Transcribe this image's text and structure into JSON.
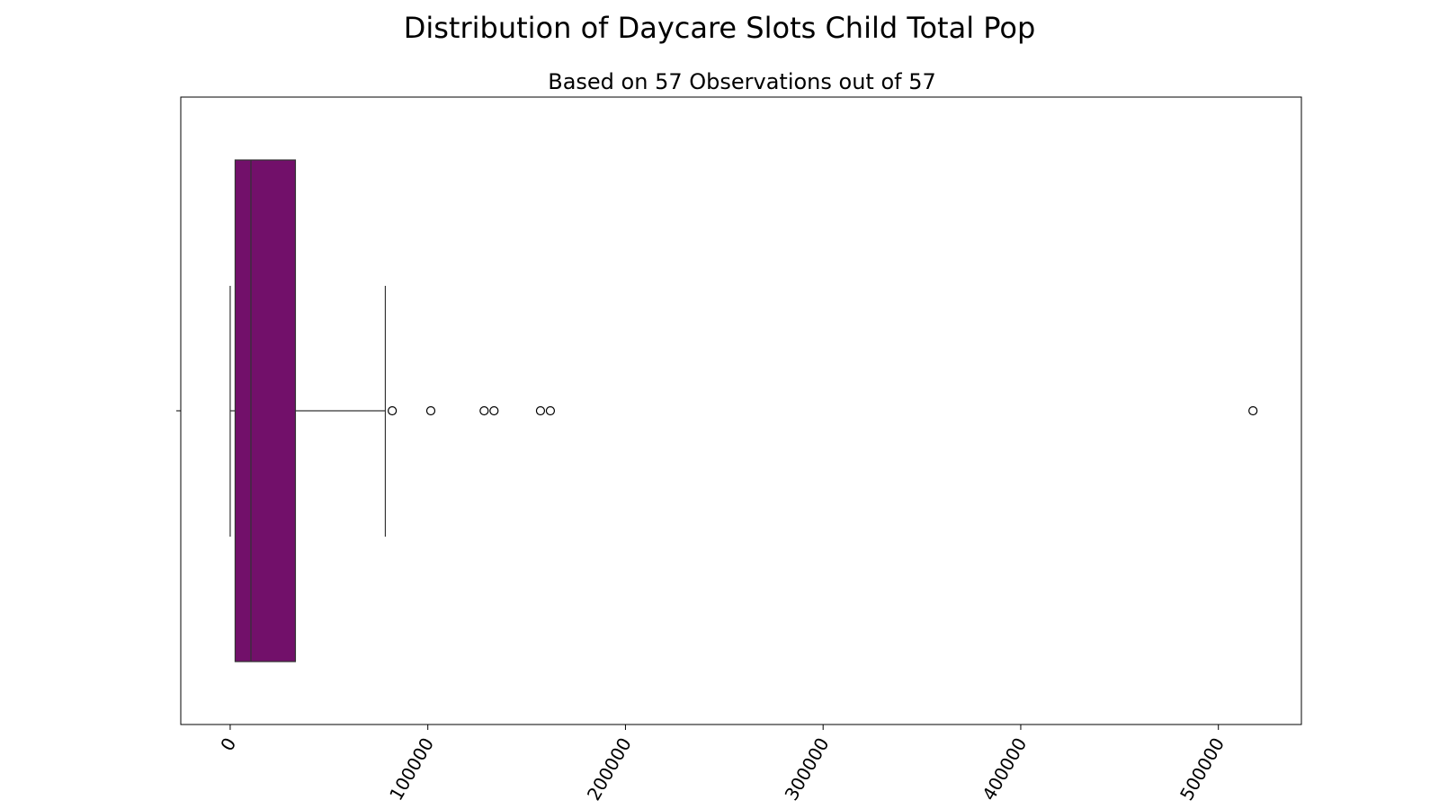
{
  "chart_data": {
    "type": "boxplot",
    "orientation": "horizontal",
    "title": "Distribution of Daycare Slots Child Total Pop",
    "subtitle": "Based on 57 Observations out of 57",
    "xlabel": "",
    "ylabel": "",
    "xlim": [
      -25000,
      542000
    ],
    "x_ticks": [
      0,
      100000,
      200000,
      300000,
      400000,
      500000
    ],
    "x_tick_labels": [
      "0",
      "100000",
      "200000",
      "300000",
      "400000",
      "500000"
    ],
    "x_tick_rotation_deg": 60,
    "grid": false,
    "legend": "none",
    "box": {
      "whisker_low": 0,
      "q1": 2500,
      "median": 10500,
      "q3": 33000,
      "whisker_high": 78500
    },
    "outliers": [
      82000,
      101500,
      128500,
      133500,
      157000,
      162000,
      517500
    ],
    "colors": {
      "box_fill": "#72106a",
      "line": "#333333",
      "outlier_stroke": "#000000"
    }
  }
}
